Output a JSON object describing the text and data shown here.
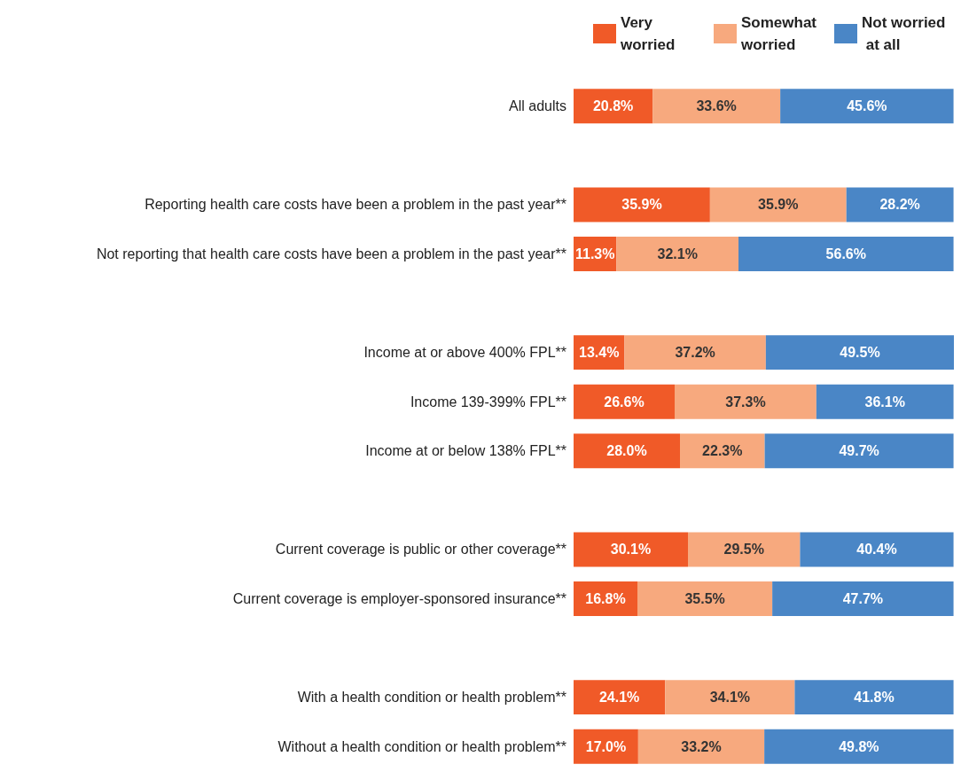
{
  "chart_data": {
    "type": "bar",
    "orientation": "horizontal",
    "stacked": true,
    "legend": "top right",
    "categories": [
      "All adults",
      null,
      "Reporting health care costs have been a problem in the past year**",
      "Not reporting that health care costs have been a problem in the past year**",
      null,
      "Income at or above 400% FPL**",
      "Income 139-399% FPL**",
      "Income at or below 138% FPL**",
      null,
      "Current coverage is public or other coverage**",
      "Current coverage is employer-sponsored insurance**",
      null,
      "With a health condition or health problem**",
      "Without a health condition or health problem**"
    ],
    "series": [
      {
        "name": "Very worried",
        "color": "#f05a28",
        "values": [
          20.8,
          null,
          35.9,
          11.3,
          null,
          13.4,
          26.6,
          28.0,
          null,
          30.1,
          16.8,
          null,
          24.1,
          17.0
        ],
        "value_labels": [
          "20.8%",
          null,
          "35.9%",
          "11.3%",
          null,
          "13.4%",
          "26.6%",
          "28.0%",
          null,
          "30.1%",
          "16.8%",
          null,
          "24.1%",
          "17.0%"
        ]
      },
      {
        "name": "Somewhat worried",
        "color": "#f7a97e",
        "values": [
          33.6,
          null,
          35.9,
          32.1,
          null,
          37.2,
          37.3,
          22.3,
          null,
          29.5,
          35.5,
          null,
          34.1,
          33.2
        ],
        "value_labels": [
          "33.6%",
          null,
          "35.9%",
          "32.1%",
          null,
          "37.2%",
          "37.3%",
          "22.3%",
          null,
          "29.5%",
          "35.5%",
          null,
          "34.1%",
          "33.2%"
        ]
      },
      {
        "name": "Not worried at all",
        "color": "#4a86c6",
        "values": [
          45.6,
          null,
          28.2,
          56.6,
          null,
          49.5,
          36.1,
          49.7,
          null,
          40.4,
          47.7,
          null,
          41.8,
          49.8
        ],
        "value_labels": [
          "45.6%",
          null,
          "28.2%",
          "56.6%",
          null,
          "49.5%",
          "36.1%",
          "49.7%",
          null,
          "40.4%",
          "47.7%",
          null,
          "41.8%",
          "49.8%"
        ]
      }
    ]
  }
}
